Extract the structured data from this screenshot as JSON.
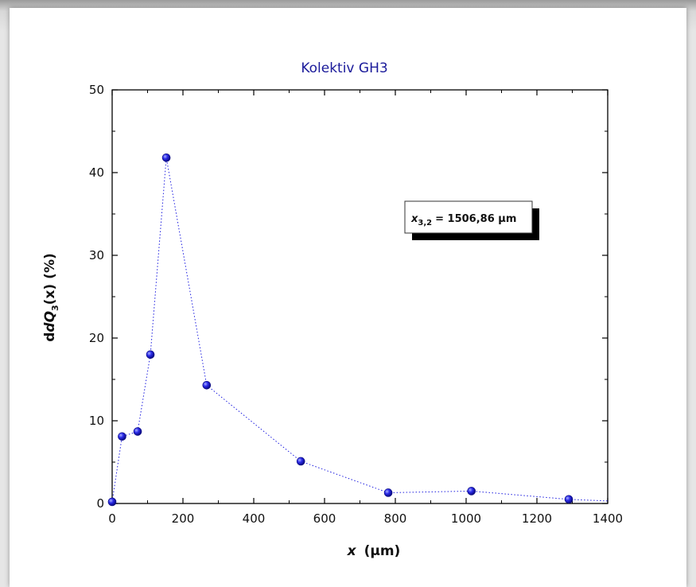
{
  "chart_data": {
    "type": "scatter",
    "title": "Kolektiv GH3",
    "xlabel": {
      "var": "x",
      "unit": "(μm)"
    },
    "ylabel": {
      "prefix": "dQ",
      "sub": "3",
      "arg": "(x)",
      "unit": "(%)"
    },
    "xlim": [
      0,
      1400
    ],
    "ylim": [
      0,
      50
    ],
    "xticks": [
      0,
      200,
      400,
      600,
      800,
      1000,
      1200,
      1400
    ],
    "yticks": [
      0,
      10,
      20,
      30,
      40,
      50
    ],
    "grid": false,
    "line_style": "dotted",
    "series": [
      {
        "x": [
          0,
          28,
          72,
          108,
          153,
          267,
          533,
          780,
          1015,
          1290,
          1400
        ],
        "y": [
          0.2,
          8.1,
          8.7,
          18.0,
          41.8,
          14.3,
          5.1,
          1.3,
          1.5,
          0.5,
          0.3
        ],
        "markers": [
          true,
          true,
          true,
          true,
          true,
          true,
          true,
          true,
          true,
          true,
          false
        ],
        "color": "#1f1fe0"
      }
    ],
    "annotation": {
      "var": "x",
      "sub": "3,2",
      "text": "= 1506,86 μm"
    }
  }
}
